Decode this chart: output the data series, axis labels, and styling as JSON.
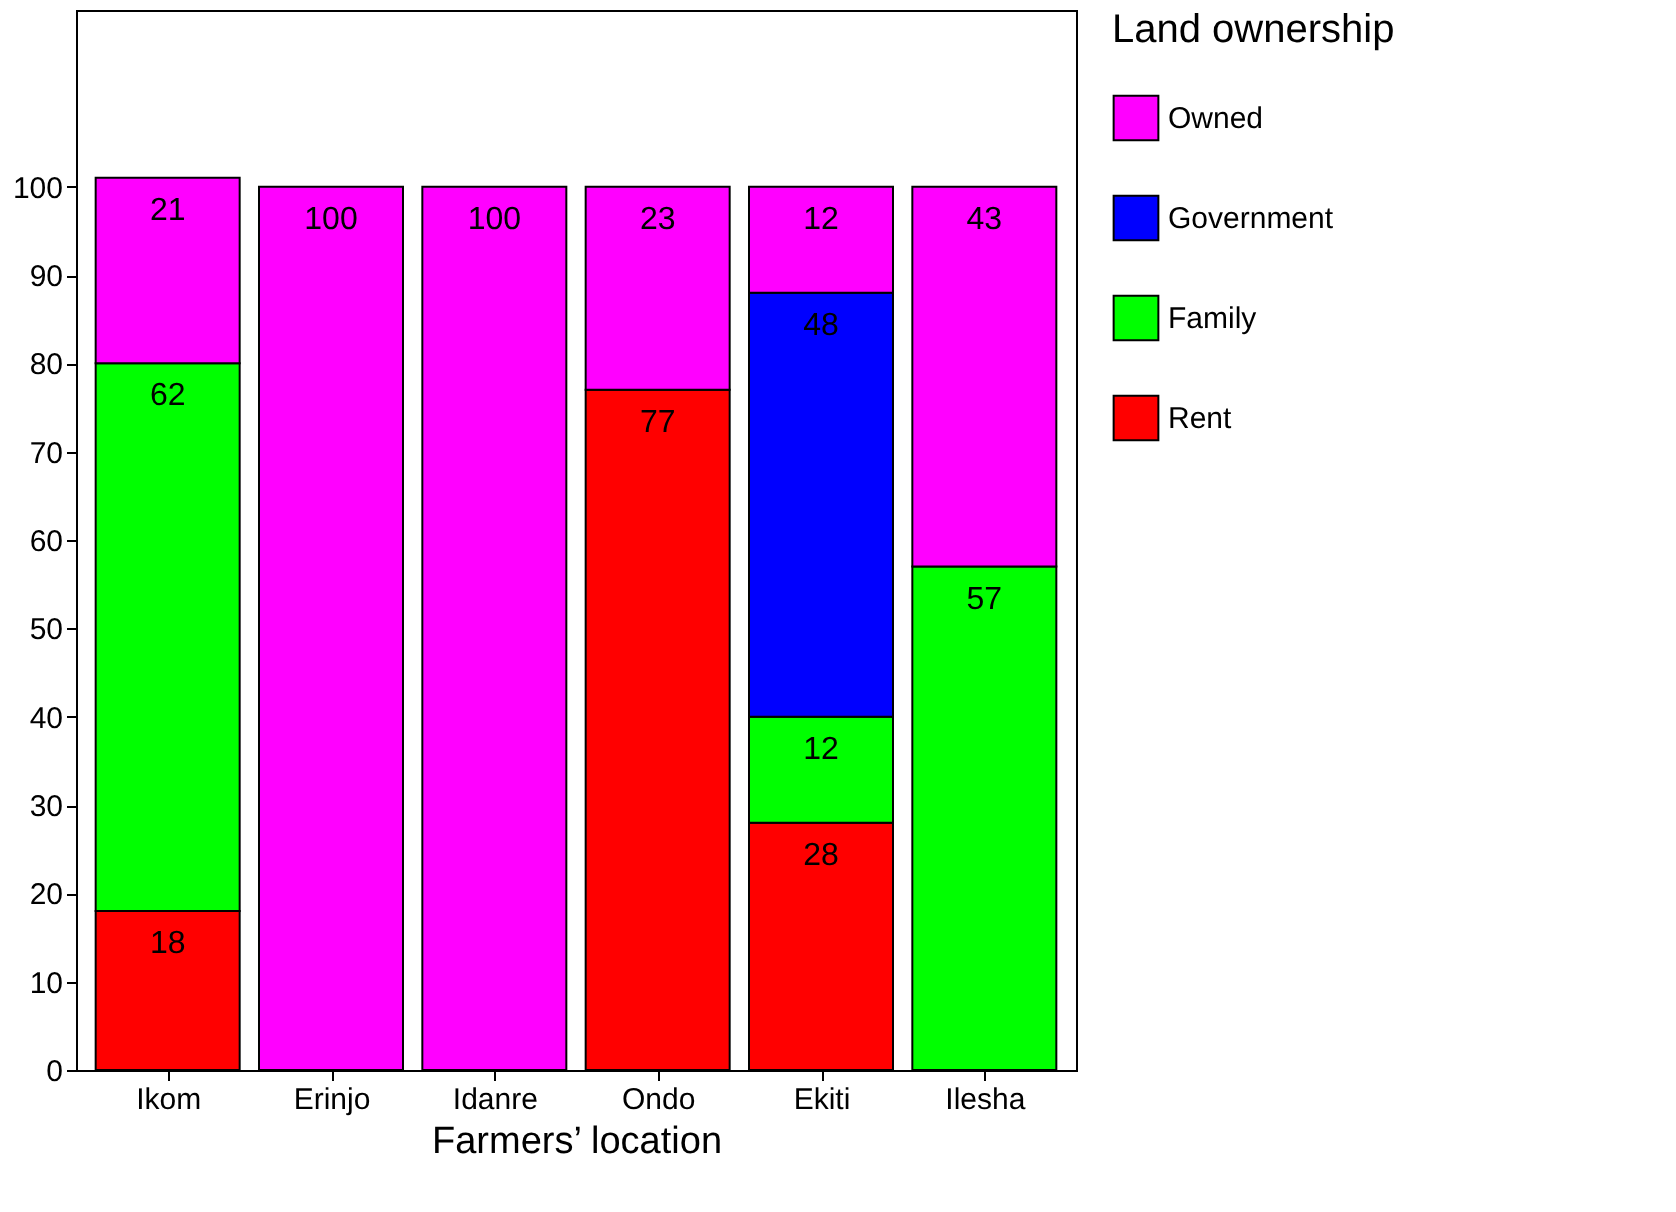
{
  "chart_data": {
    "type": "bar",
    "xlabel": "Farmers’ location",
    "legend_title": "Land ownership",
    "categories": [
      "Ikom",
      "Erinjo",
      "Idanre",
      "Ondo",
      "Ekiti",
      "Ilesha"
    ],
    "stacked": true,
    "series": [
      {
        "name": "Rent",
        "color": "#ff0000",
        "values": [
          18,
          null,
          null,
          77,
          28,
          null
        ]
      },
      {
        "name": "Family",
        "color": "#00ff00",
        "values": [
          62,
          null,
          null,
          null,
          12,
          57
        ]
      },
      {
        "name": "Government",
        "color": "#0000ff",
        "values": [
          null,
          null,
          null,
          null,
          48,
          null
        ]
      },
      {
        "name": "Owned",
        "color": "#ff00ff",
        "values": [
          21,
          100,
          100,
          23,
          12,
          43
        ]
      }
    ],
    "ylim": [
      0,
      120
    ],
    "yticks": [
      0,
      10,
      20,
      30,
      40,
      50,
      60,
      70,
      80,
      90,
      100
    ],
    "data_labels": true,
    "grid": false,
    "legend": "right"
  }
}
